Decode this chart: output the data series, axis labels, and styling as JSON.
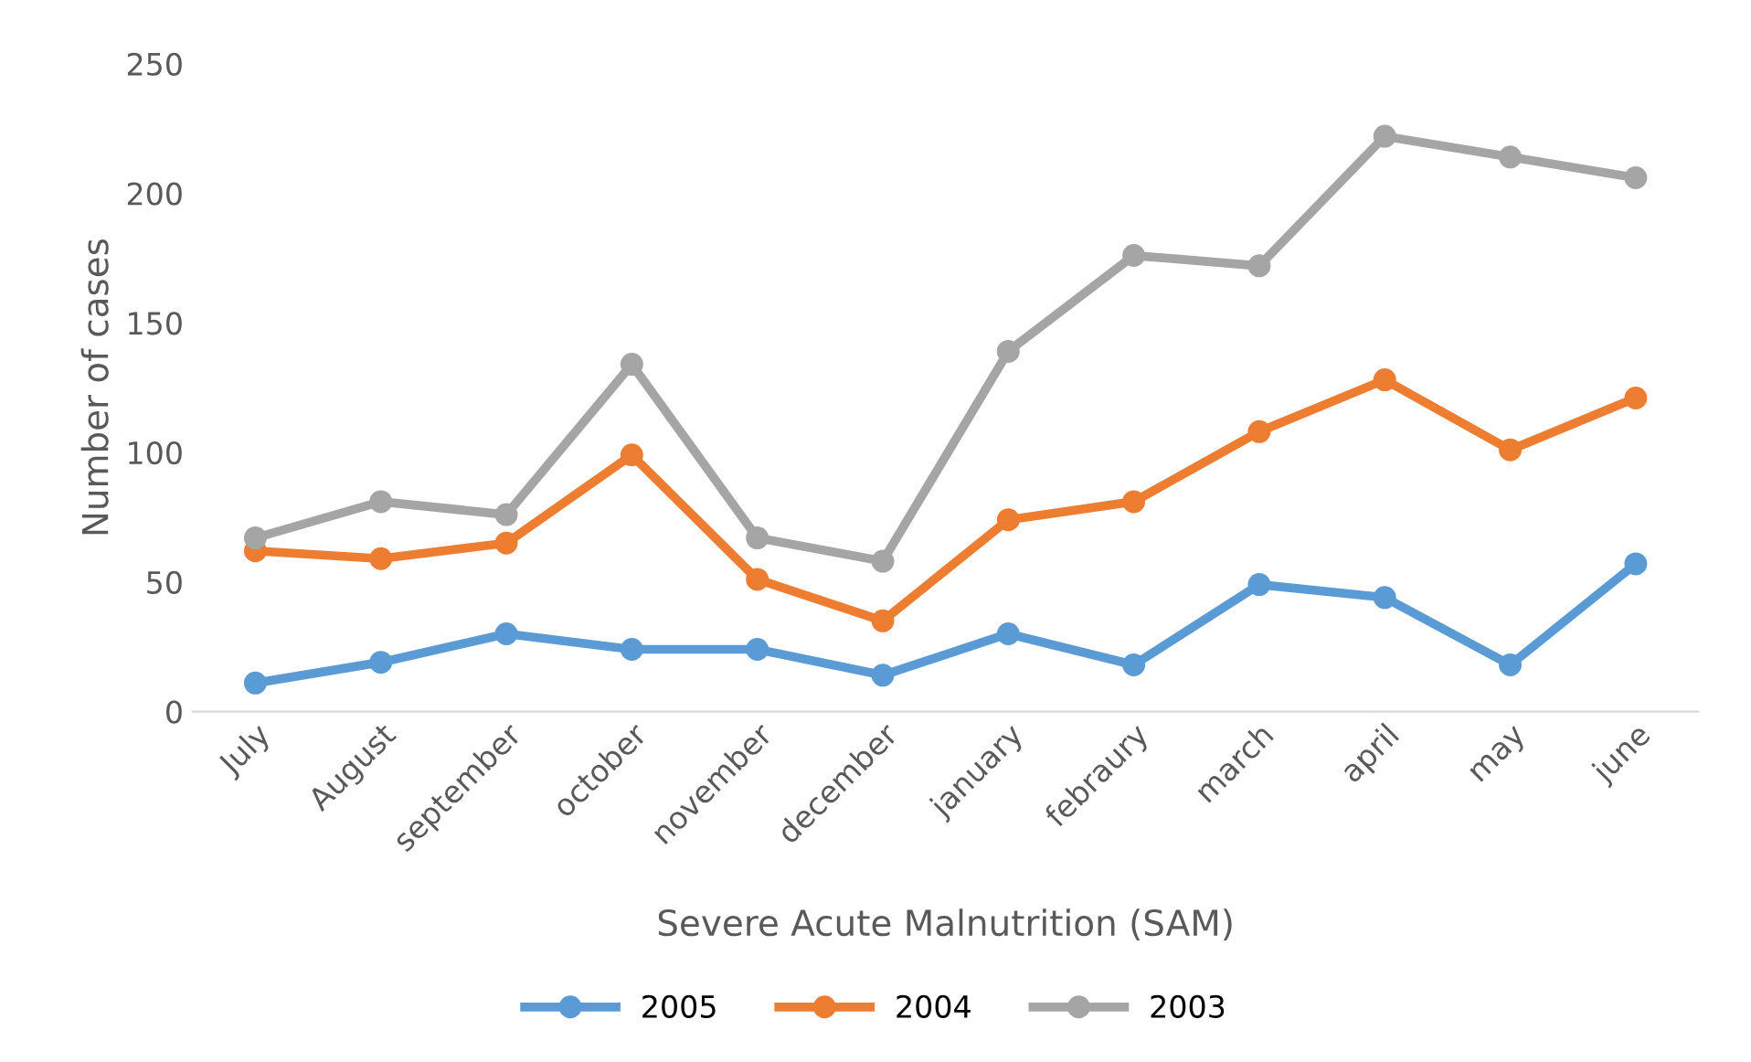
{
  "chart_data": {
    "type": "line",
    "xlabel": "Severe Acute Malnutrition (SAM)",
    "ylabel": "Number of cases",
    "categories": [
      "July",
      "August",
      "september",
      "october",
      "november",
      "december",
      "january",
      "febraury",
      "march",
      "april",
      "may",
      "june"
    ],
    "series": [
      {
        "name": "2005",
        "color": "#5b9bd5",
        "values": [
          11,
          19,
          30,
          24,
          24,
          14,
          30,
          18,
          49,
          44,
          18,
          57
        ]
      },
      {
        "name": "2004",
        "color": "#ed7d31",
        "values": [
          62,
          59,
          65,
          99,
          51,
          35,
          74,
          81,
          108,
          128,
          101,
          121
        ]
      },
      {
        "name": "2003",
        "color": "#a5a5a5",
        "values": [
          67,
          81,
          76,
          134,
          67,
          58,
          139,
          176,
          172,
          222,
          214,
          206
        ]
      }
    ],
    "ylim": [
      0,
      250
    ],
    "yticks": [
      0,
      50,
      100,
      150,
      200,
      250
    ],
    "grid": false,
    "legend": "bottom",
    "marker": "circle",
    "line_style": "solid"
  }
}
